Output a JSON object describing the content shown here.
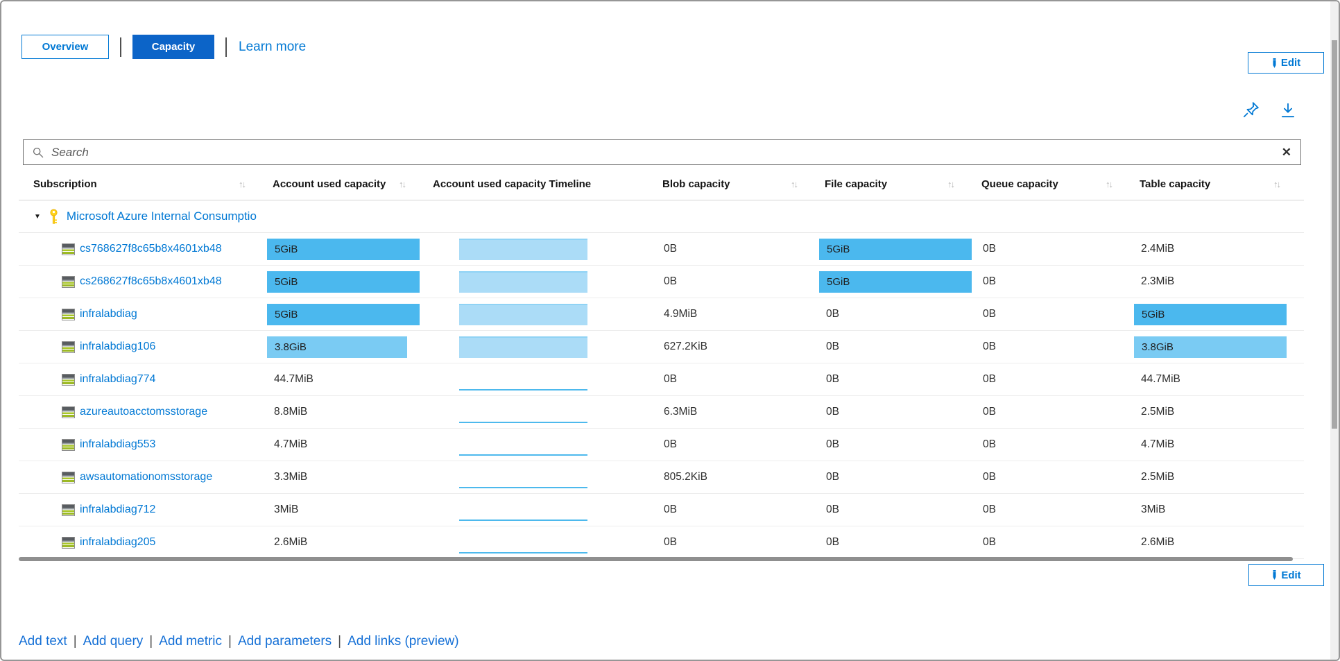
{
  "tabs": {
    "overview": "Overview",
    "capacity": "Capacity",
    "learn_more": "Learn more"
  },
  "toolbar": {
    "edit_label": "Edit"
  },
  "search": {
    "placeholder": "Search"
  },
  "icons": {
    "sort": "↑↓",
    "clear": "✕",
    "caret": "▼"
  },
  "colors": {
    "accent": "#0078d4",
    "tab_selected_bg": "#0c64c8",
    "bar_full": "#4bb8ee",
    "bar_light": "#7acbf3",
    "timeline_fill": "#abdcf7",
    "timeline_edge": "#90d3f5",
    "spark_line": "#4db9ed"
  },
  "table": {
    "columns": [
      {
        "label": "Subscription",
        "sortable": true
      },
      {
        "label": "Account used capacity",
        "sortable": true
      },
      {
        "label": "Account used capacity Timeline",
        "sortable": false
      },
      {
        "label": "Blob capacity",
        "sortable": true
      },
      {
        "label": "File capacity",
        "sortable": true
      },
      {
        "label": "Queue capacity",
        "sortable": true
      },
      {
        "label": "Table capacity",
        "sortable": true
      }
    ],
    "group_label": "Microsoft Azure Internal Consumptio",
    "rows": [
      {
        "name": "cs768627f8c65b8x4601xb48",
        "account": {
          "type": "bar",
          "label": "5GiB",
          "pct": 100,
          "shade": "full"
        },
        "timeline": "block",
        "blob": "0B",
        "file": {
          "type": "bar",
          "label": "5GiB",
          "pct": 100,
          "shade": "full"
        },
        "queue": "0B",
        "table": {
          "type": "text",
          "label": "2.4MiB"
        }
      },
      {
        "name": "cs268627f8c65b8x4601xb48",
        "account": {
          "type": "bar",
          "label": "5GiB",
          "pct": 100,
          "shade": "full"
        },
        "timeline": "block",
        "blob": "0B",
        "file": {
          "type": "bar",
          "label": "5GiB",
          "pct": 100,
          "shade": "full"
        },
        "queue": "0B",
        "table": {
          "type": "text",
          "label": "2.3MiB"
        }
      },
      {
        "name": "infralabdiag",
        "account": {
          "type": "bar",
          "label": "5GiB",
          "pct": 100,
          "shade": "full"
        },
        "timeline": "block",
        "blob": "4.9MiB",
        "file": "0B",
        "queue": "0B",
        "table": {
          "type": "bar",
          "label": "5GiB",
          "pct": 100,
          "shade": "full"
        }
      },
      {
        "name": "infralabdiag106",
        "account": {
          "type": "bar",
          "label": "3.8GiB",
          "pct": 92,
          "shade": "light"
        },
        "timeline": "block",
        "blob": "627.2KiB",
        "file": "0B",
        "queue": "0B",
        "table": {
          "type": "bar",
          "label": "3.8GiB",
          "pct": 100,
          "shade": "light"
        }
      },
      {
        "name": "infralabdiag774",
        "account": {
          "type": "text",
          "label": "44.7MiB"
        },
        "timeline": "spark",
        "blob": "0B",
        "file": "0B",
        "queue": "0B",
        "table": {
          "type": "text",
          "label": "44.7MiB"
        }
      },
      {
        "name": "azureautoacctomsstorage",
        "account": {
          "type": "text",
          "label": "8.8MiB"
        },
        "timeline": "spark",
        "blob": "6.3MiB",
        "file": "0B",
        "queue": "0B",
        "table": {
          "type": "text",
          "label": "2.5MiB"
        }
      },
      {
        "name": "infralabdiag553",
        "account": {
          "type": "text",
          "label": "4.7MiB"
        },
        "timeline": "spark",
        "blob": "0B",
        "file": "0B",
        "queue": "0B",
        "table": {
          "type": "text",
          "label": "4.7MiB"
        }
      },
      {
        "name": "awsautomationomsstorage",
        "account": {
          "type": "text",
          "label": "3.3MiB"
        },
        "timeline": "spark",
        "blob": "805.2KiB",
        "file": "0B",
        "queue": "0B",
        "table": {
          "type": "text",
          "label": "2.5MiB"
        }
      },
      {
        "name": "infralabdiag712",
        "account": {
          "type": "text",
          "label": "3MiB"
        },
        "timeline": "spark",
        "blob": "0B",
        "file": "0B",
        "queue": "0B",
        "table": {
          "type": "text",
          "label": "3MiB"
        }
      },
      {
        "name": "infralabdiag205",
        "account": {
          "type": "text",
          "label": "2.6MiB"
        },
        "timeline": "spark",
        "blob": "0B",
        "file": "0B",
        "queue": "0B",
        "table": {
          "type": "text",
          "label": "2.6MiB"
        }
      }
    ]
  },
  "footer": {
    "edit_label": "Edit",
    "links": [
      "Add text",
      "Add query",
      "Add metric",
      "Add parameters",
      "Add links (preview)"
    ]
  }
}
